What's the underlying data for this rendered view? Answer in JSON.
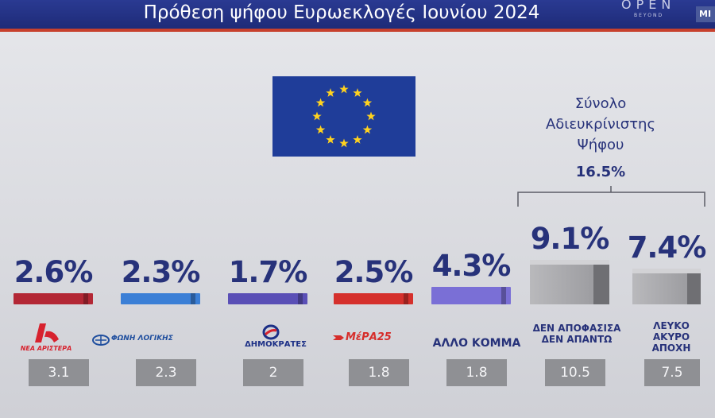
{
  "header": {
    "title": "Πρόθεση ψήφου Ευρωεκλογές Ιουνίου 2024",
    "logo": "OPEN",
    "logo_sub": "BEYOND",
    "logo2": "MI"
  },
  "colors": {
    "header": "#22318a",
    "accent_line": "#c7402d",
    "text": "#27327a",
    "flag": "#1f3d99",
    "star": "#ffd21f"
  },
  "undecided": {
    "title_lines": [
      "Σύνολο",
      "Αδιευκρίνιστης",
      "Ψήφου"
    ],
    "total": "16.5%"
  },
  "chart_data": {
    "type": "bar",
    "unit": "%",
    "categories": [
      "ΝΕΑ ΑΡΙΣΤΕΡΑ",
      "ΦΩΝΗ ΛΟΓΙΚΗΣ",
      "ΔΗΜΟΚΡΑΤΕΣ",
      "ΜέΡΑ25",
      "ΑΛΛΟ ΚΟΜΜΑ",
      "ΔΕΝ ΑΠΟΦΑΣΙΣΑ ΔΕΝ ΑΠΑΝΤΩ",
      "ΛΕΥΚΟ ΑΚΥΡΟ ΑΠΟΧΗ"
    ],
    "series": [
      {
        "values": [
          2.6,
          2.3,
          1.7,
          2.5,
          4.3,
          9.1,
          7.4
        ]
      },
      {
        "values": [
          3.1,
          2.3,
          2,
          1.8,
          1.8,
          10.5,
          7.5
        ]
      }
    ],
    "value_labels": [
      "2.6%",
      "2.3%",
      "1.7%",
      "2.5%",
      "4.3%",
      "9.1%",
      "7.4%"
    ],
    "previous_labels": [
      "3.1",
      "2.3",
      "2",
      "1.8",
      "1.8",
      "10.5",
      "7.5"
    ],
    "bar_colors": [
      "#b32735",
      "#3b7fd6",
      "#5a4fb6",
      "#d5302c",
      "#7a6fd6",
      "#8c8c8f",
      "#8c8c8f"
    ]
  },
  "parties": [
    {
      "logo_text": "ΝΕΑ ΑΡΙΣΤΕΡΑ",
      "color": "#d7222e"
    },
    {
      "logo_text": "ΦΩΝΗ ΛΟΓΙΚΗΣ",
      "color": "#1f4e9e"
    },
    {
      "logo_text": "ΔΗΜΟΚΡΑΤΕΣ",
      "color": "#1c2f86"
    },
    {
      "logo_text": "ΜέΡΑ25",
      "color": "#d62d2a"
    }
  ],
  "other_label": "ΑΛΛΟ ΚΟΜΜΑ",
  "undecided_labels": [
    {
      "line1": "ΔΕΝ ΑΠΟΦΑΣΙΣΑ",
      "line2": "ΔΕΝ ΑΠΑΝΤΩ"
    },
    {
      "line1": "ΛΕΥΚΟ",
      "line2": "ΑΚΥΡΟ",
      "line3": "ΑΠΟΧΗ"
    }
  ]
}
